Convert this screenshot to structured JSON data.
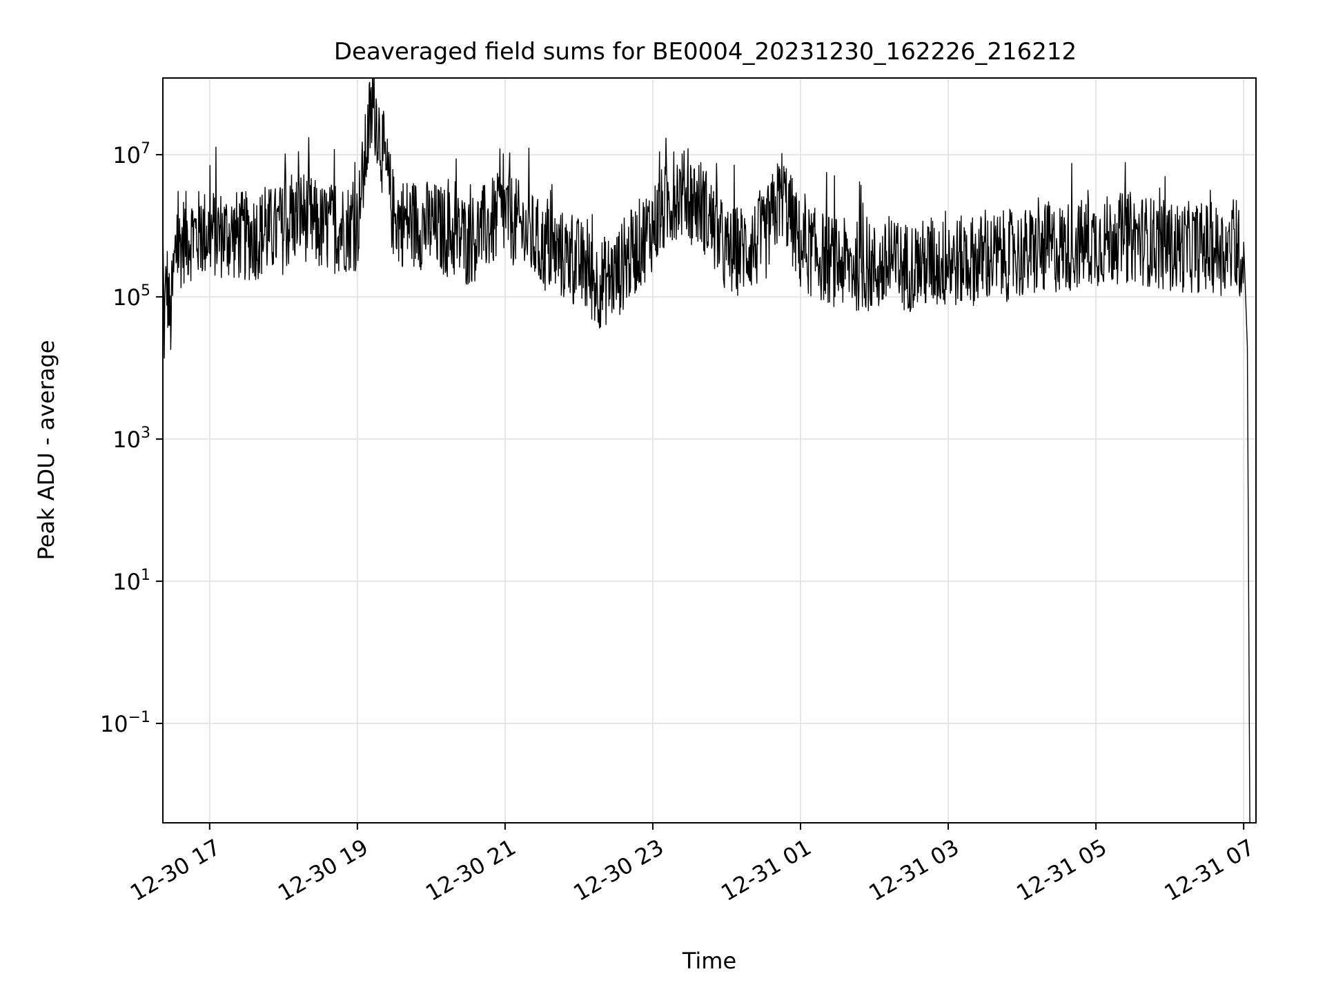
{
  "chart_data": {
    "type": "line",
    "title": "Deaveraged field sums for BE0004_20231230_162226_216212",
    "xlabel": "Time",
    "ylabel": "Peak ADU - average",
    "yscale": "log",
    "grid": true,
    "line_color": "#000000",
    "grid_color": "#e5e5e5",
    "xlim": [
      "2023-12-30 16:22",
      "2023-12-31 07:10"
    ],
    "ylim": [
      0.004,
      120000000
    ],
    "x_ticks": [
      {
        "value": "2023-12-30 17:00",
        "label": "12-30 17"
      },
      {
        "value": "2023-12-30 19:00",
        "label": "12-30 19"
      },
      {
        "value": "2023-12-30 21:00",
        "label": "12-30 21"
      },
      {
        "value": "2023-12-30 23:00",
        "label": "12-30 23"
      },
      {
        "value": "2023-12-31 01:00",
        "label": "12-31 01"
      },
      {
        "value": "2023-12-31 03:00",
        "label": "12-31 03"
      },
      {
        "value": "2023-12-31 05:00",
        "label": "12-31 05"
      },
      {
        "value": "2023-12-31 07:00",
        "label": "12-31 07"
      }
    ],
    "y_ticks": [
      {
        "value": 0.1,
        "base": "10",
        "exp": "−1"
      },
      {
        "value": 10,
        "base": "10",
        "exp": "1"
      },
      {
        "value": 1000,
        "base": "10",
        "exp": "3"
      },
      {
        "value": 100000,
        "base": "10",
        "exp": "5"
      },
      {
        "value": 10000000,
        "base": "10",
        "exp": "7"
      }
    ],
    "series": [
      {
        "points": [
          [
            "2023-12-30 16:22",
            700000
          ],
          [
            "2023-12-30 16:23",
            30000
          ],
          [
            "2023-12-30 16:25",
            200000
          ],
          [
            "2023-12-30 16:28",
            40000
          ],
          [
            "2023-12-30 16:32",
            400000
          ],
          [
            "2023-12-30 16:40",
            700000
          ],
          [
            "2023-12-30 17:00",
            800000
          ],
          [
            "2023-12-30 17:30",
            700000
          ],
          [
            "2023-12-30 18:00",
            900000
          ],
          [
            "2023-12-30 18:15",
            1500000
          ],
          [
            "2023-12-30 18:30",
            900000
          ],
          [
            "2023-12-30 19:00",
            1000000
          ],
          [
            "2023-12-30 19:10",
            30000000
          ],
          [
            "2023-12-30 19:15",
            40000000
          ],
          [
            "2023-12-30 19:30",
            1200000
          ],
          [
            "2023-12-30 20:00",
            1000000
          ],
          [
            "2023-12-30 20:30",
            600000
          ],
          [
            "2023-12-30 21:00",
            1500000
          ],
          [
            "2023-12-30 21:30",
            500000
          ],
          [
            "2023-12-30 22:00",
            300000
          ],
          [
            "2023-12-30 22:15",
            150000
          ],
          [
            "2023-12-30 22:30",
            200000
          ],
          [
            "2023-12-30 23:00",
            1000000
          ],
          [
            "2023-12-30 23:20",
            3000000
          ],
          [
            "2023-12-30 23:40",
            2000000
          ],
          [
            "2023-12-31 00:00",
            400000
          ],
          [
            "2023-12-31 00:30",
            600000
          ],
          [
            "2023-12-31 00:45",
            3000000
          ],
          [
            "2023-12-31 01:00",
            500000
          ],
          [
            "2023-12-31 01:30",
            300000
          ],
          [
            "2023-12-31 02:00",
            250000
          ],
          [
            "2023-12-31 03:00",
            300000
          ],
          [
            "2023-12-31 04:00",
            400000
          ],
          [
            "2023-12-31 05:00",
            600000
          ],
          [
            "2023-12-31 05:30",
            700000
          ],
          [
            "2023-12-31 06:00",
            500000
          ],
          [
            "2023-12-31 06:30",
            500000
          ],
          [
            "2023-12-31 07:00",
            400000
          ],
          [
            "2023-12-31 07:03",
            20000
          ],
          [
            "2023-12-31 07:05",
            0.004
          ]
        ]
      }
    ]
  }
}
